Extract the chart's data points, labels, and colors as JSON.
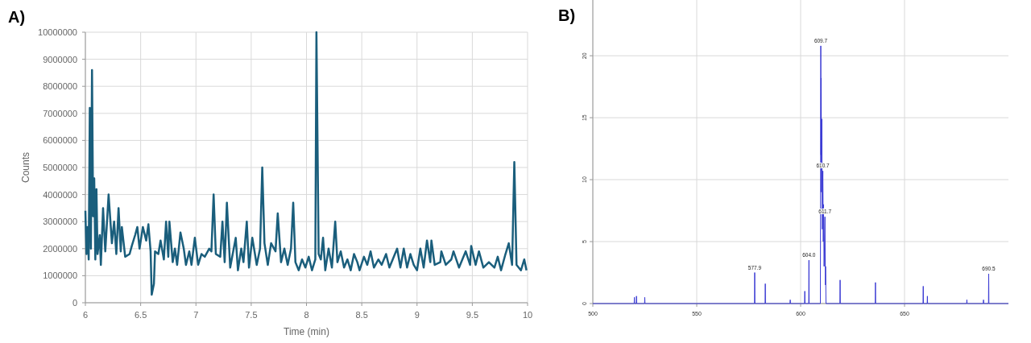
{
  "chart_data": [
    {
      "type": "line",
      "title": "A)",
      "xlabel": "Time (min)",
      "ylabel": "Counts",
      "xlim": [
        6,
        10
      ],
      "ylim": [
        0,
        10000000
      ],
      "xticks": [
        6,
        6.5,
        7,
        7.5,
        8,
        8.5,
        9,
        9.5,
        10
      ],
      "yticks": [
        0,
        1000000,
        2000000,
        3000000,
        4000000,
        5000000,
        6000000,
        7000000,
        8000000,
        9000000,
        10000000
      ],
      "grid": true,
      "x": [
        6.0,
        6.01,
        6.02,
        6.03,
        6.04,
        6.05,
        6.06,
        6.07,
        6.08,
        6.09,
        6.1,
        6.11,
        6.13,
        6.14,
        6.16,
        6.18,
        6.21,
        6.24,
        6.26,
        6.28,
        6.3,
        6.32,
        6.33,
        6.36,
        6.4,
        6.42,
        6.45,
        6.47,
        6.49,
        6.52,
        6.55,
        6.57,
        6.59,
        6.6,
        6.62,
        6.63,
        6.66,
        6.68,
        6.71,
        6.73,
        6.75,
        6.76,
        6.79,
        6.81,
        6.83,
        6.86,
        6.89,
        6.91,
        6.94,
        6.96,
        6.99,
        7.02,
        7.05,
        7.08,
        7.12,
        7.14,
        7.16,
        7.18,
        7.22,
        7.24,
        7.26,
        7.28,
        7.31,
        7.36,
        7.38,
        7.41,
        7.43,
        7.46,
        7.48,
        7.51,
        7.55,
        7.58,
        7.6,
        7.62,
        7.65,
        7.68,
        7.72,
        7.74,
        7.77,
        7.8,
        7.83,
        7.86,
        7.88,
        7.9,
        7.93,
        7.96,
        7.99,
        8.02,
        8.05,
        8.08,
        8.09,
        8.11,
        8.13,
        8.15,
        8.17,
        8.2,
        8.23,
        8.26,
        8.28,
        8.31,
        8.34,
        8.37,
        8.4,
        8.43,
        8.46,
        8.48,
        8.52,
        8.55,
        8.58,
        8.61,
        8.65,
        8.68,
        8.72,
        8.75,
        8.78,
        8.82,
        8.85,
        8.88,
        8.91,
        8.94,
        8.97,
        9.0,
        9.03,
        9.06,
        9.09,
        9.12,
        9.13,
        9.16,
        9.21,
        9.22,
        9.26,
        9.31,
        9.33,
        9.38,
        9.44,
        9.48,
        9.49,
        9.53,
        9.56,
        9.6,
        9.65,
        9.7,
        9.73,
        9.76,
        9.8,
        9.83,
        9.86,
        9.88,
        9.9,
        9.94,
        9.97,
        9.99
      ],
      "series": [
        {
          "color": "#1a5e7c",
          "values": [
            3400000,
            1800000,
            2800000,
            1600000,
            7200000,
            2000000,
            8600000,
            3200000,
            4600000,
            1600000,
            4200000,
            1800000,
            2500000,
            1400000,
            3500000,
            1900000,
            4000000,
            2200000,
            3000000,
            1800000,
            3500000,
            1900000,
            2800000,
            1700000,
            1800000,
            2100000,
            2500000,
            2800000,
            2000000,
            2800000,
            2300000,
            2900000,
            1900000,
            300000,
            700000,
            1900000,
            1800000,
            2300000,
            1600000,
            3000000,
            1700000,
            3000000,
            1500000,
            2000000,
            1400000,
            2600000,
            2000000,
            1400000,
            1900000,
            1400000,
            2400000,
            1400000,
            1800000,
            1700000,
            2000000,
            1900000,
            4000000,
            1800000,
            1700000,
            3000000,
            1500000,
            3700000,
            1300000,
            2400000,
            1200000,
            2000000,
            1500000,
            3000000,
            1300000,
            2400000,
            1400000,
            2000000,
            5000000,
            2200000,
            1400000,
            2200000,
            1900000,
            3300000,
            1500000,
            2000000,
            1400000,
            2000000,
            3700000,
            1500000,
            1200000,
            1600000,
            1300000,
            1700000,
            1200000,
            1600000,
            10000000,
            1800000,
            1600000,
            2400000,
            1200000,
            2000000,
            1300000,
            3000000,
            1500000,
            1900000,
            1300000,
            1600000,
            1200000,
            1800000,
            1500000,
            1200000,
            1700000,
            1400000,
            1900000,
            1300000,
            1600000,
            1400000,
            1800000,
            1300000,
            1600000,
            2000000,
            1300000,
            2000000,
            1300000,
            1800000,
            1400000,
            1200000,
            2000000,
            1300000,
            2300000,
            1500000,
            2300000,
            1400000,
            1500000,
            1900000,
            1400000,
            1600000,
            1900000,
            1300000,
            1900000,
            1400000,
            2100000,
            1400000,
            1900000,
            1300000,
            1500000,
            1300000,
            1700000,
            1200000,
            1800000,
            2200000,
            1400000,
            5200000,
            1400000,
            1200000,
            1600000,
            1200000
          ]
        }
      ]
    },
    {
      "type": "line",
      "title": "B)",
      "xlim": [
        500,
        700
      ],
      "ylim": [
        0,
        24.5
      ],
      "xticks": [
        500,
        550,
        600,
        650
      ],
      "yticks": [
        0,
        5,
        10,
        15,
        20
      ],
      "grid": true,
      "x": [
        500,
        519.9,
        520,
        520.1,
        520.9,
        521,
        521.1,
        524.9,
        525,
        525.1,
        577.8,
        577.9,
        578,
        582.9,
        583,
        583.1,
        594.9,
        595,
        595.1,
        601.9,
        602,
        602.1,
        603.9,
        604,
        604.1,
        609.5,
        609.7,
        609.8,
        609.9,
        610,
        610.2,
        610.4,
        610.7,
        610.9,
        611,
        611.3,
        611.7,
        611.9,
        612,
        612.2,
        618.9,
        619,
        619.1,
        635.9,
        636,
        636.1,
        658.9,
        659,
        659.1,
        660.9,
        661,
        661.1,
        679.9,
        680,
        680.1,
        687.9,
        688,
        688.1,
        690.4,
        690.5,
        690.6,
        700
      ],
      "series": [
        {
          "color": "#3b3bd4",
          "values": [
            0,
            0,
            0.5,
            0,
            0,
            0.6,
            0,
            0,
            0.5,
            0,
            0,
            2.5,
            0,
            0,
            1.6,
            0,
            0,
            0.3,
            0,
            0,
            1.0,
            0,
            0,
            3.5,
            0,
            0,
            20.8,
            12,
            18.2,
            9,
            14.9,
            6,
            10.7,
            5,
            8.0,
            3,
            7.0,
            1.5,
            3.0,
            0,
            0,
            1.9,
            0,
            0,
            1.7,
            0,
            0,
            1.4,
            0,
            0,
            0.6,
            0,
            0,
            0.3,
            0,
            0,
            0.3,
            0,
            0,
            2.4,
            0,
            0
          ]
        }
      ],
      "annotations": [
        {
          "text": "577.9",
          "x": 577.9,
          "y": 2.5
        },
        {
          "text": "604.0",
          "x": 604,
          "y": 3.5
        },
        {
          "text": "609.7",
          "x": 609.7,
          "y": 20.8
        },
        {
          "text": "610.7",
          "x": 610.7,
          "y": 10.7
        },
        {
          "text": "611.7",
          "x": 611.7,
          "y": 7.0
        },
        {
          "text": "690.5",
          "x": 690.5,
          "y": 2.4
        }
      ]
    }
  ]
}
